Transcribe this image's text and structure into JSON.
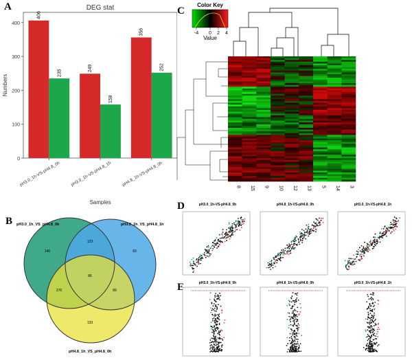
{
  "panel_labels": {
    "a": "A",
    "b": "B",
    "c": "C",
    "d": "D",
    "e": "E"
  },
  "chart_data": [
    {
      "panel": "A",
      "type": "bar",
      "title": "DEG stat",
      "xlabel": "Samples",
      "ylabel": "Numbers",
      "ylim": [
        0,
        430
      ],
      "yticks": [
        0,
        100,
        200,
        300,
        400
      ],
      "categories": [
        "pH3.0_1h-VS-pH4.8_0h",
        "pH3.0_1h-VS-pH4.8_1h",
        "pH4.8_1h-VS-pH4.8_0h"
      ],
      "series": [
        {
          "values": [
            406,
            249,
            356
          ],
          "color": "#d62a2a"
        },
        {
          "values": [
            235,
            158,
            252
          ],
          "color": "#1ba74a"
        }
      ]
    },
    {
      "panel": "B",
      "type": "venn",
      "sets": [
        {
          "label": "pH3.0_1h_VS_pH4.8_0h",
          "color": "#1f9a78"
        },
        {
          "label": "pH3.0_1h_VS_pH4.8_1h",
          "color": "#4ea8e6"
        },
        {
          "label": "pH4.8_1h_VS_pH4.8_0h",
          "color": "#e8e03a"
        }
      ],
      "regions": {
        "a_only": 146,
        "b_only": 83,
        "c_only": 133,
        "ab": 123,
        "ac": 276,
        "bc": 89,
        "abc": 86
      }
    },
    {
      "panel": "C",
      "type": "heatmap",
      "legend_title": "Color Key",
      "legend_label": "Value",
      "legend_ticks": [
        "-4",
        "0",
        "2",
        "4"
      ],
      "column_labels": [
        "8",
        "15",
        "9",
        "10",
        "12",
        "13",
        "5",
        "14",
        "3"
      ]
    },
    {
      "panel": "D",
      "type": "scatter",
      "titles": [
        "pH3.0_1h-VS-pH4.8_0h",
        "pH4.8_1h-VS-pH4.8_0h",
        "pH3.0_1h-VS-pH4.8_1h"
      ]
    },
    {
      "panel": "E",
      "type": "volcano",
      "titles": [
        "pH3.0_1h-VS-pH4.8_0h",
        "pH4.8_1h-VS-pH4.8_0h",
        "pH3.0_1h-VS-pH4.8_1h"
      ]
    }
  ]
}
